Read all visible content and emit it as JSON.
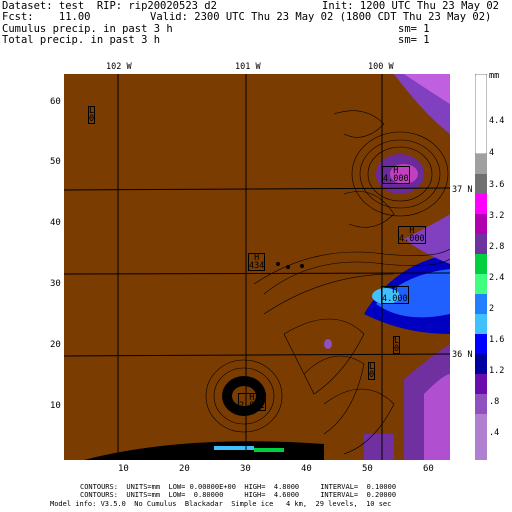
{
  "header": {
    "dataset": "Dataset: test  RIP: rip20020523 d2",
    "init": "Init: 1200 UTC Thu 23 May 02",
    "fcst": "Fcst:    11.00",
    "valid": "Valid: 2300 UTC Thu 23 May 02 (1800 CDT Thu 23 May 02)",
    "field1": "Cumulus precip. in past 3 h",
    "field2": "Total precip. in past 3 h",
    "sm1": "sm= 1",
    "sm2": "sm= 1"
  },
  "map": {
    "lon_labels": [
      "102 W",
      "101 W",
      "100 W"
    ],
    "lat_labels": [
      "37 N",
      "36 N"
    ],
    "x_ticks": [
      "10",
      "20",
      "30",
      "40",
      "50",
      "60"
    ],
    "y_ticks": [
      "60",
      "50",
      "40",
      "30",
      "20",
      "10"
    ],
    "land_color": "#7a3c00",
    "marker_labels": [
      {
        "code": "L",
        "value": "0",
        "x": 5,
        "y": 57
      },
      {
        "code": "L",
        "value": "0",
        "x": 54,
        "y": 18
      },
      {
        "code": "L",
        "value": "0",
        "x": 51,
        "y": 14
      },
      {
        "code": "H",
        "value": "434",
        "x": 32,
        "y": 33
      },
      {
        "code": "H",
        "value": "2.881",
        "x": 30,
        "y": 10
      },
      {
        "code": "H",
        "value": "4.000",
        "x": 56,
        "y": 48
      },
      {
        "code": "H",
        "value": "4.000",
        "x": 58,
        "y": 40
      },
      {
        "code": "H",
        "value": "4.000",
        "x": 54,
        "y": 30
      }
    ]
  },
  "colorbar": {
    "unit": "mm",
    "labels": [
      "4.4",
      "4",
      "3.6",
      "3.2",
      "2.8",
      "2.4",
      "2",
      "1.6",
      "1.2",
      ".8",
      ".4"
    ],
    "colors": [
      "#ffffff",
      "#a0a0a0",
      "#707070",
      "#ff00ff",
      "#b000b0",
      "#7030a0",
      "#00d040",
      "#40ff80",
      "#2080ff",
      "#40c0ff",
      "#0000ff",
      "#0000a0",
      "#6a0dad",
      "#9050c0",
      "#b080d0"
    ]
  },
  "footer": {
    "line1": "CONTOURS:  UNITS=mm  LOW= 0.00000E+00  HIGH=  4.8000     INTERVAL=  0.10000",
    "line2": "CONTOURS:  UNITS=mm  LOW=  0.80000     HIGH=  4.6000     INTERVAL=  0.20000",
    "line3": "Model info: V3.5.0  No Cumulus  Blackadar  Simple ice   4 km,  29 levels,  10 sec"
  }
}
